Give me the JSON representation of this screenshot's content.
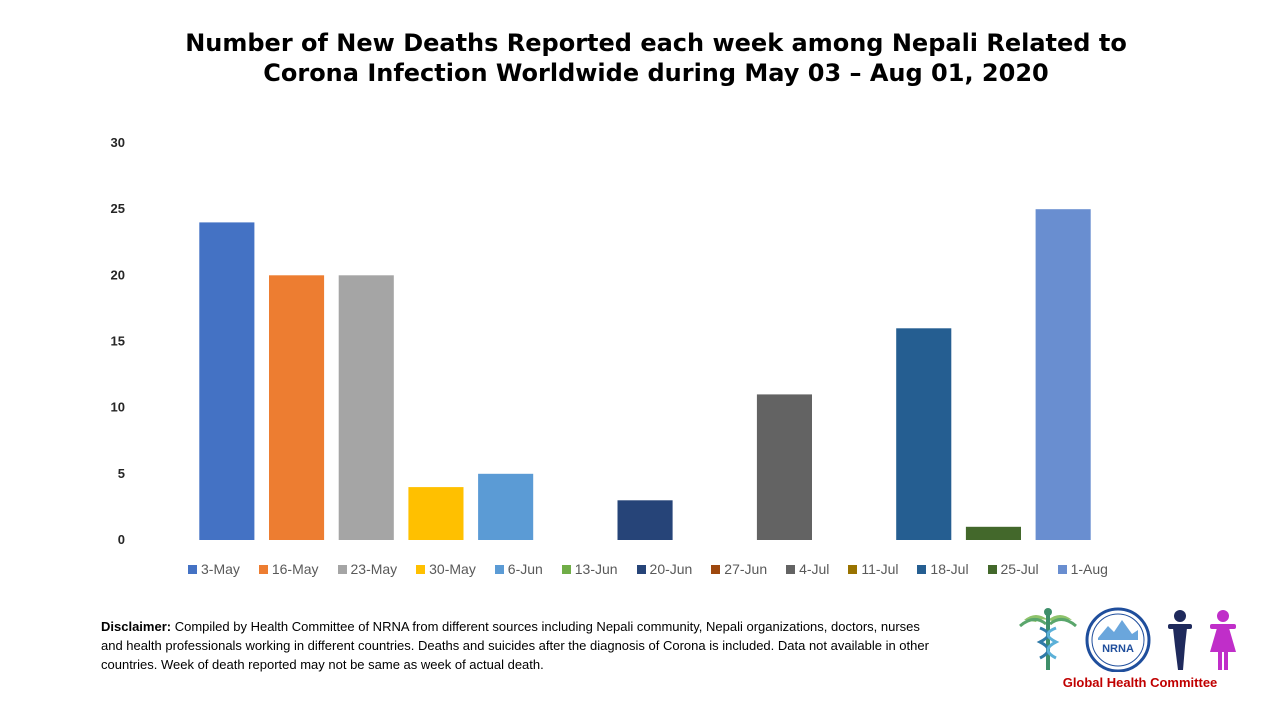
{
  "chart_data": {
    "type": "bar",
    "title_line1": "Number of New Deaths Reported each week among Nepali Related to",
    "title_line2": "Corona Infection Worldwide during May 03 – Aug 01, 2020",
    "categories": [
      "3-May",
      "16-May",
      "23-May",
      "30-May",
      "6-Jun",
      "13-Jun",
      "20-Jun",
      "27-Jun",
      "4-Jul",
      "11-Jul",
      "18-Jul",
      "25-Jul",
      "1-Aug"
    ],
    "values": [
      24,
      20,
      20,
      4,
      5,
      0,
      3,
      0,
      11,
      0,
      16,
      1,
      25
    ],
    "colors": [
      "#4472c4",
      "#ed7d31",
      "#a5a5a5",
      "#ffc000",
      "#5b9bd5",
      "#70ad47",
      "#264478",
      "#9e480e",
      "#636363",
      "#997300",
      "#255e91",
      "#43682b",
      "#698ed0"
    ],
    "ylim": [
      0,
      30
    ],
    "yticks": [
      0,
      5,
      10,
      15,
      20,
      25,
      30
    ],
    "xlabel": "",
    "ylabel": "",
    "grid": false,
    "legend_position": "bottom"
  },
  "disclaimer": {
    "label": "Disclaimer:",
    "text": " Compiled by Health Committee of NRNA from different sources including Nepali community, Nepali organizations, doctors, nurses and health professionals working in different countries. Deaths and suicides after the diagnosis of Corona is included. Data not available in other countries. Week of death reported may not be same as week of actual death."
  },
  "logo": {
    "badge_text": "NRNA",
    "caption": "Global Health Committee"
  }
}
